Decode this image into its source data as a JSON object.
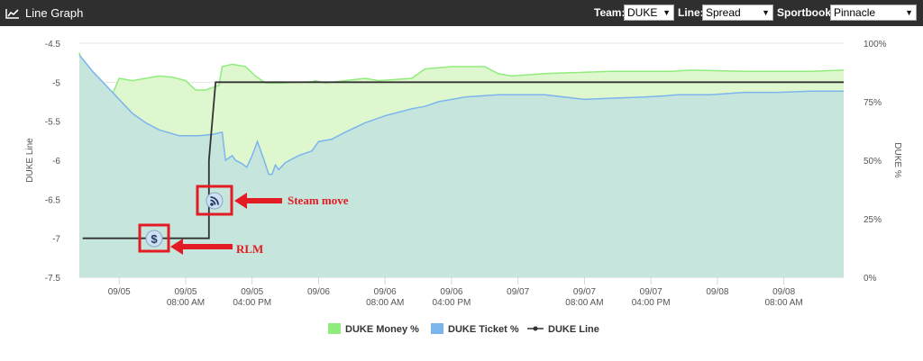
{
  "header": {
    "title": "Line Graph",
    "icon": "line-chart-icon",
    "team_label": "Team:",
    "team_value": "DUKE",
    "line_label": "Line:",
    "line_value": "Spread",
    "sportsbook_label": "Sportbook:",
    "sportsbook_value": "Pinnacle"
  },
  "annotations": {
    "steam": "Steam move",
    "rlm": "RLM"
  },
  "chart_data": {
    "type": "area",
    "xlabel": "",
    "ylabel_left": "DUKE Line",
    "ylabel_right": "DUKE %",
    "y_left_ticks": [
      "-4.5",
      "-5",
      "-5.5",
      "-6",
      "-6.5",
      "-7",
      "-7.5"
    ],
    "y_right_ticks": [
      "100%",
      "75%",
      "50%",
      "25%",
      "0%"
    ],
    "ylim_left": [
      -7.5,
      -4.5
    ],
    "ylim_right": [
      0,
      100
    ],
    "x_ticks": [
      {
        "x": 0.6,
        "l1": "09/05",
        "l2": ""
      },
      {
        "x": 1.6,
        "l1": "09/05",
        "l2": "08:00 AM"
      },
      {
        "x": 2.6,
        "l1": "09/05",
        "l2": "04:00 PM"
      },
      {
        "x": 3.6,
        "l1": "09/06",
        "l2": ""
      },
      {
        "x": 4.6,
        "l1": "09/06",
        "l2": "08:00 AM"
      },
      {
        "x": 5.6,
        "l1": "09/06",
        "l2": "04:00 PM"
      },
      {
        "x": 6.6,
        "l1": "09/07",
        "l2": ""
      },
      {
        "x": 7.6,
        "l1": "09/07",
        "l2": "08:00 AM"
      },
      {
        "x": 8.6,
        "l1": "09/07",
        "l2": "04:00 PM"
      },
      {
        "x": 9.6,
        "l1": "09/08",
        "l2": ""
      },
      {
        "x": 10.6,
        "l1": "09/08",
        "l2": "08:00 AM"
      }
    ],
    "xlim": [
      0,
      11.5
    ],
    "grid": true,
    "legend_placement": "bottom",
    "series": [
      {
        "name": "DUKE Money %",
        "kind": "area",
        "axis": "right",
        "color": "#90ed7d",
        "fill": "#dff7cf",
        "points": [
          [
            0,
            96
          ],
          [
            0.05,
            90
          ],
          [
            0.1,
            80
          ],
          [
            0.3,
            79
          ],
          [
            0.4,
            75
          ],
          [
            0.45,
            75
          ],
          [
            0.6,
            85
          ],
          [
            0.8,
            84
          ],
          [
            1.0,
            85
          ],
          [
            1.2,
            86
          ],
          [
            1.4,
            85.5
          ],
          [
            1.6,
            84
          ],
          [
            1.75,
            80
          ],
          [
            1.9,
            80
          ],
          [
            2.1,
            82
          ],
          [
            2.15,
            90
          ],
          [
            2.3,
            91
          ],
          [
            2.5,
            90
          ],
          [
            2.65,
            86
          ],
          [
            2.8,
            83
          ],
          [
            3.0,
            83
          ],
          [
            3.5,
            83.5
          ],
          [
            3.55,
            84
          ],
          [
            3.7,
            83
          ],
          [
            4.0,
            84
          ],
          [
            4.3,
            85
          ],
          [
            4.5,
            84
          ],
          [
            5.0,
            85
          ],
          [
            5.2,
            89
          ],
          [
            5.6,
            90
          ],
          [
            6.1,
            90
          ],
          [
            6.3,
            87
          ],
          [
            6.5,
            86
          ],
          [
            7.0,
            87
          ],
          [
            8.0,
            88
          ],
          [
            8.9,
            88
          ],
          [
            9.2,
            88.5
          ],
          [
            10.0,
            88
          ],
          [
            11.0,
            88
          ],
          [
            11.5,
            88.5
          ]
        ]
      },
      {
        "name": "DUKE Ticket %",
        "kind": "area",
        "axis": "right",
        "color": "#7cb5ec",
        "fill": "#c5e5dd",
        "points": [
          [
            0,
            95
          ],
          [
            0.2,
            88
          ],
          [
            0.4,
            82
          ],
          [
            0.6,
            76
          ],
          [
            0.8,
            70
          ],
          [
            1.0,
            66
          ],
          [
            1.2,
            63
          ],
          [
            1.5,
            60.5
          ],
          [
            1.8,
            60.5
          ],
          [
            2.0,
            61
          ],
          [
            2.15,
            62
          ],
          [
            2.2,
            50
          ],
          [
            2.3,
            52
          ],
          [
            2.35,
            50
          ],
          [
            2.45,
            48.5
          ],
          [
            2.52,
            47
          ],
          [
            2.6,
            52
          ],
          [
            2.68,
            58
          ],
          [
            2.78,
            50
          ],
          [
            2.85,
            44
          ],
          [
            2.9,
            44
          ],
          [
            2.95,
            48
          ],
          [
            3.0,
            46
          ],
          [
            3.1,
            49
          ],
          [
            3.3,
            52
          ],
          [
            3.5,
            54
          ],
          [
            3.6,
            58
          ],
          [
            3.8,
            59
          ],
          [
            4.0,
            62
          ],
          [
            4.3,
            66
          ],
          [
            4.6,
            69
          ],
          [
            5.0,
            72
          ],
          [
            5.2,
            73
          ],
          [
            5.4,
            75
          ],
          [
            5.8,
            77
          ],
          [
            6.3,
            78
          ],
          [
            7.0,
            78
          ],
          [
            7.6,
            76
          ],
          [
            8.0,
            76.5
          ],
          [
            8.5,
            77
          ],
          [
            8.8,
            77.5
          ],
          [
            9.0,
            78
          ],
          [
            9.5,
            78
          ],
          [
            10.0,
            79
          ],
          [
            10.5,
            79
          ],
          [
            11.0,
            79.5
          ],
          [
            11.5,
            79.5
          ]
        ]
      },
      {
        "name": "DUKE Line",
        "kind": "line",
        "axis": "left",
        "color": "#333333",
        "points": [
          [
            0.05,
            -7.0
          ],
          [
            1.95,
            -7.0
          ],
          [
            1.95,
            -6.0
          ],
          [
            2.05,
            -5.0
          ],
          [
            11.5,
            -5.0
          ]
        ]
      }
    ]
  }
}
